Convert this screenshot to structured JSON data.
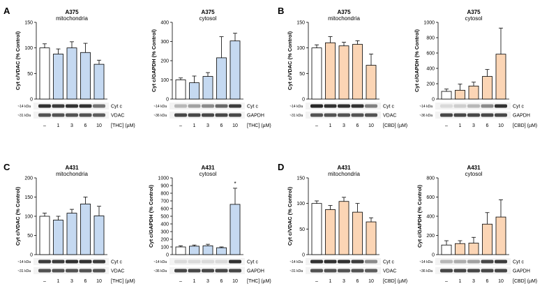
{
  "chart_data": [
    {
      "type": "bar",
      "panel": "A",
      "title": "A375",
      "subtitle": "mitochondria",
      "ylabel": "Cyt c/VDAC (% Control)",
      "ylim": [
        0,
        150
      ],
      "yticks": [
        0,
        50,
        100,
        150
      ],
      "categories": [
        "–",
        "1",
        "3",
        "6",
        "10"
      ],
      "values": [
        100,
        88,
        100,
        91,
        68
      ],
      "errors": [
        8,
        10,
        12,
        18,
        8
      ],
      "treatment": "[THC]",
      "unit": "(µM)",
      "bar_colors": [
        "#ffffff",
        "#c5d9f1",
        "#c5d9f1",
        "#c5d9f1",
        "#c5d9f1"
      ],
      "blots": [
        {
          "kda": "~14 kDa",
          "name": "Cyt c",
          "intensity": [
            0.85,
            0.8,
            0.85,
            0.85,
            0.55
          ]
        },
        {
          "kda": "~31 kDa",
          "name": "VDAC",
          "intensity": [
            0.7,
            0.7,
            0.7,
            0.7,
            0.65
          ]
        }
      ]
    },
    {
      "type": "bar",
      "panel": "",
      "title": "A375",
      "subtitle": "cytosol",
      "ylabel": "Cyt c/GAPDH (% Control)",
      "ylim": [
        0,
        400
      ],
      "yticks": [
        0,
        100,
        200,
        300,
        400
      ],
      "categories": [
        "–",
        "1",
        "3",
        "6",
        "10"
      ],
      "values": [
        100,
        85,
        118,
        215,
        303
      ],
      "errors": [
        10,
        35,
        20,
        110,
        40
      ],
      "treatment": "[THC]",
      "unit": "(µM)",
      "bar_colors": [
        "#ffffff",
        "#c5d9f1",
        "#c5d9f1",
        "#c5d9f1",
        "#c5d9f1"
      ],
      "blots": [
        {
          "kda": "~14 kDa",
          "name": "Cyt c",
          "intensity": [
            0.25,
            0.35,
            0.45,
            0.6,
            0.8
          ]
        },
        {
          "kda": "~36 kDa",
          "name": "GAPDH",
          "intensity": [
            0.75,
            0.75,
            0.75,
            0.75,
            0.75
          ]
        }
      ]
    },
    {
      "type": "bar",
      "panel": "B",
      "title": "A375",
      "subtitle": "mitochondria",
      "ylabel": "Cyt c/VDAC (% Control)",
      "ylim": [
        0,
        150
      ],
      "yticks": [
        0,
        50,
        100,
        150
      ],
      "categories": [
        "–",
        "1",
        "3",
        "6",
        "10"
      ],
      "values": [
        100,
        110,
        104,
        107,
        66
      ],
      "errors": [
        6,
        12,
        7,
        7,
        22
      ],
      "treatment": "[CBD]",
      "unit": "(µM)",
      "bar_colors": [
        "#ffffff",
        "#fbd5b5",
        "#fbd5b5",
        "#fbd5b5",
        "#fbd5b5"
      ],
      "blots": [
        {
          "kda": "~14 kDa",
          "name": "Cyt c",
          "intensity": [
            0.9,
            0.85,
            0.85,
            0.85,
            0.5
          ]
        },
        {
          "kda": "~31 kDa",
          "name": "VDAC",
          "intensity": [
            0.7,
            0.7,
            0.7,
            0.7,
            0.7
          ]
        }
      ]
    },
    {
      "type": "bar",
      "panel": "",
      "title": "A375",
      "subtitle": "cytosol",
      "ylabel": "Cyt c/GAPDH (% Control)",
      "ylim": [
        0,
        1000
      ],
      "yticks": [
        0,
        200,
        400,
        600,
        800,
        1000
      ],
      "categories": [
        "–",
        "1",
        "3",
        "6",
        "10"
      ],
      "values": [
        100,
        115,
        170,
        295,
        585
      ],
      "errors": [
        30,
        80,
        50,
        90,
        340
      ],
      "treatment": "[CBD]",
      "unit": "(µM)",
      "bar_colors": [
        "#ffffff",
        "#fbd5b5",
        "#fbd5b5",
        "#fbd5b5",
        "#fbd5b5"
      ],
      "blots": [
        {
          "kda": "~14 kDa",
          "name": "Cyt c",
          "intensity": [
            0.1,
            0.15,
            0.25,
            0.45,
            0.85
          ]
        },
        {
          "kda": "~36 kDa",
          "name": "GAPDH",
          "intensity": [
            0.75,
            0.75,
            0.75,
            0.75,
            0.75
          ]
        }
      ]
    },
    {
      "type": "bar",
      "panel": "C",
      "title": "A431",
      "subtitle": "mitochondria",
      "ylabel": "Cyt c/VDAC (% Control)",
      "ylim": [
        0,
        200
      ],
      "yticks": [
        0,
        50,
        100,
        150,
        200
      ],
      "categories": [
        "–",
        "1",
        "3",
        "6",
        "10"
      ],
      "values": [
        100,
        90,
        108,
        132,
        101
      ],
      "errors": [
        8,
        10,
        10,
        18,
        25
      ],
      "treatment": "[THC]",
      "unit": "(µM)",
      "bar_colors": [
        "#ffffff",
        "#c5d9f1",
        "#c5d9f1",
        "#c5d9f1",
        "#c5d9f1"
      ],
      "blots": [
        {
          "kda": "~14 kDa",
          "name": "Cyt c",
          "intensity": [
            0.8,
            0.8,
            0.85,
            0.85,
            0.8
          ]
        },
        {
          "kda": "~31 kDa",
          "name": "VDAC",
          "intensity": [
            0.7,
            0.7,
            0.7,
            0.7,
            0.7
          ]
        }
      ]
    },
    {
      "type": "bar",
      "panel": "",
      "title": "A431",
      "subtitle": "cytosol",
      "ylabel": "Cyt c/GAPDH (% Control)",
      "ylim": [
        0,
        1000
      ],
      "yticks": [
        0,
        100,
        200,
        300,
        400,
        500,
        600,
        700,
        800,
        900,
        1000
      ],
      "categories": [
        "–",
        "1",
        "3",
        "6",
        "10"
      ],
      "values": [
        100,
        110,
        115,
        90,
        655
      ],
      "errors": [
        15,
        15,
        20,
        10,
        210
      ],
      "treatment": "[THC]",
      "unit": "(µM)",
      "annotations": [
        {
          "category": "10",
          "text": "*"
        }
      ],
      "bar_colors": [
        "#ffffff",
        "#c5d9f1",
        "#c5d9f1",
        "#c5d9f1",
        "#c5d9f1"
      ],
      "blots": [
        {
          "kda": "~14 kDa",
          "name": "Cyt c",
          "intensity": [
            0.1,
            0.1,
            0.1,
            0.1,
            0.85
          ]
        },
        {
          "kda": "~36 kDa",
          "name": "GAPDH",
          "intensity": [
            0.75,
            0.75,
            0.75,
            0.75,
            0.75
          ]
        }
      ]
    },
    {
      "type": "bar",
      "panel": "D",
      "title": "A431",
      "subtitle": "mitochondria",
      "ylabel": "Cyt c/VDAC (% Control)",
      "ylim": [
        0,
        150
      ],
      "yticks": [
        0,
        50,
        100,
        150
      ],
      "categories": [
        "–",
        "1",
        "3",
        "6",
        "10"
      ],
      "values": [
        100,
        88,
        104,
        83,
        64
      ],
      "errors": [
        5,
        8,
        8,
        17,
        8
      ],
      "treatment": "[CBD]",
      "unit": "(µM)",
      "bar_colors": [
        "#ffffff",
        "#fbd5b5",
        "#fbd5b5",
        "#fbd5b5",
        "#fbd5b5"
      ],
      "blots": [
        {
          "kda": "~14 kDa",
          "name": "Cyt c",
          "intensity": [
            0.85,
            0.85,
            0.85,
            0.8,
            0.45
          ]
        },
        {
          "kda": "~31 kDa",
          "name": "VDAC",
          "intensity": [
            0.7,
            0.7,
            0.7,
            0.7,
            0.65
          ]
        }
      ]
    },
    {
      "type": "bar",
      "panel": "",
      "title": "A431",
      "subtitle": "cytosol",
      "ylabel": "Cyt c/GAPDH (% Control)",
      "ylim": [
        0,
        800
      ],
      "yticks": [
        0,
        200,
        400,
        600,
        800
      ],
      "categories": [
        "–",
        "1",
        "3",
        "6",
        "10"
      ],
      "values": [
        100,
        115,
        120,
        318,
        392
      ],
      "errors": [
        45,
        30,
        60,
        120,
        180
      ],
      "treatment": "[CBD]",
      "unit": "(µM)",
      "bar_colors": [
        "#ffffff",
        "#fbd5b5",
        "#fbd5b5",
        "#fbd5b5",
        "#fbd5b5"
      ],
      "blots": [
        {
          "kda": "~14 kDa",
          "name": "Cyt c",
          "intensity": [
            0.25,
            0.3,
            0.35,
            0.75,
            0.8
          ]
        },
        {
          "kda": "~36 kDa",
          "name": "GAPDH",
          "intensity": [
            0.75,
            0.75,
            0.75,
            0.75,
            0.75
          ]
        }
      ]
    }
  ]
}
